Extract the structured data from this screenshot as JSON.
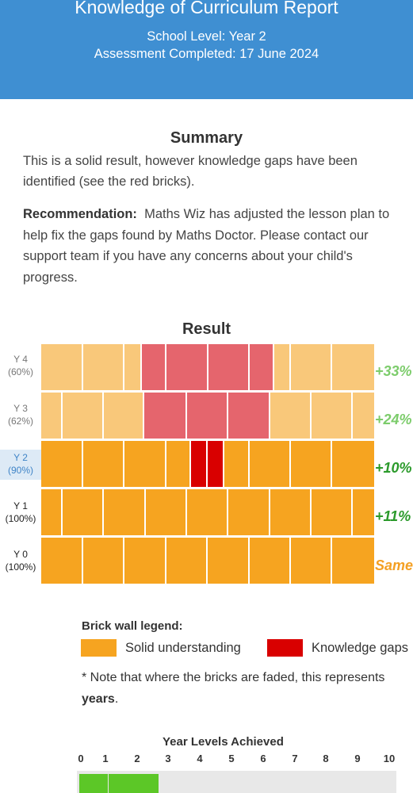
{
  "header": {
    "title": "Knowledge of Curriculum Report",
    "school_level": "School Level: Year 2",
    "assessment": "Assessment Completed: 17 June 2024"
  },
  "summary": {
    "heading": "Summary",
    "text": "This is a solid result, however knowledge gaps have been identified (see the red bricks).",
    "recommendation_label": "Recommendation:",
    "recommendation_text": "Maths Wiz has adjusted the lesson plan to help fix the gaps found by Maths Doctor. Please contact our support team if you have any concerns about your child's progress."
  },
  "result": {
    "heading": "Result",
    "rows": [
      {
        "year": "Y 4",
        "percent": "(60%)",
        "change": "+33%",
        "change_color": "#7ccc6b",
        "faded": true,
        "current": false
      },
      {
        "year": "Y 3",
        "percent": "(62%)",
        "change": "+24%",
        "change_color": "#7ccc6b",
        "faded": true,
        "current": false
      },
      {
        "year": "Y 2",
        "percent": "(90%)",
        "change": "+10%",
        "change_color": "#2b9a2b",
        "faded": false,
        "current": true
      },
      {
        "year": "Y 1",
        "percent": "(100%)",
        "change": "+11%",
        "change_color": "#2b9a2b",
        "faded": false,
        "current": false
      },
      {
        "year": "Y 0",
        "percent": "(100%)",
        "change": "Same",
        "change_color": "#f4a024",
        "faded": false,
        "current": false
      }
    ]
  },
  "legend": {
    "title": "Brick wall legend:",
    "solid_label": "Solid understanding",
    "gaps_label": "Knowledge gaps",
    "solid_color": "#f6a420",
    "gaps_color": "#d90000",
    "note_text": "* Note that where the bricks are faded, this represents",
    "note_bold": "years"
  },
  "year_levels": {
    "title": "Year Levels Achieved",
    "labels": [
      "0",
      "1",
      "2",
      "3",
      "4",
      "5",
      "6",
      "7",
      "8",
      "9",
      "10"
    ],
    "achieved": 3
  },
  "colors": {
    "header_bg": "#3f8fd2",
    "brick_solid": "#f6a420",
    "brick_solid_faded": "#f9c87a",
    "brick_gap": "#d90000",
    "brick_gap_faded": "#e5656d",
    "progress_green": "#5cc727"
  }
}
